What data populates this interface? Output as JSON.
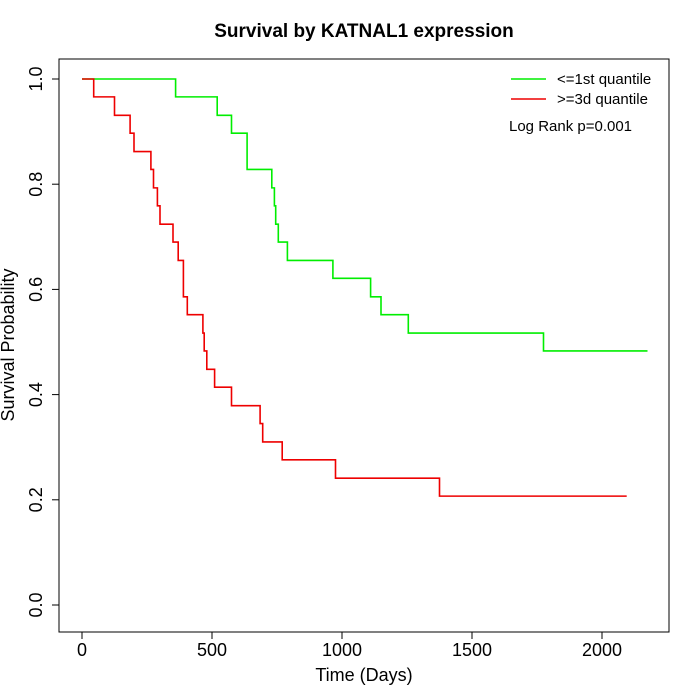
{
  "chart_data": {
    "type": "line",
    "title": "Survival by KATNAL1 expression",
    "xlabel": "Time (Days)",
    "ylabel": "Survival Probability",
    "xlim": [
      0,
      2200
    ],
    "ylim": [
      0,
      1
    ],
    "x_ticks": [
      "0",
      "500",
      "1000",
      "1500",
      "2000"
    ],
    "x_tick_values": [
      0,
      500,
      1000,
      1500,
      2000
    ],
    "y_ticks": [
      "0.0",
      "0.2",
      "0.4",
      "0.6",
      "0.8",
      "1.0"
    ],
    "y_tick_values": [
      0,
      0.2,
      0.4,
      0.6,
      0.8,
      1.0
    ],
    "grid": false,
    "legend_position": "top-right",
    "annotation": "Log Rank p=0.001",
    "series": [
      {
        "name": "<=1st quantile",
        "color": "#00ee00",
        "step": true,
        "x": [
          0,
          360,
          520,
          575,
          635,
          730,
          740,
          745,
          755,
          790,
          965,
          1110,
          1150,
          1255,
          1775,
          2175
        ],
        "y": [
          1.0,
          0.966,
          0.931,
          0.897,
          0.828,
          0.793,
          0.759,
          0.724,
          0.69,
          0.655,
          0.621,
          0.586,
          0.552,
          0.517,
          0.483,
          0.483
        ]
      },
      {
        "name": ">=3d quantile",
        "color": "#ee0000",
        "step": true,
        "x": [
          0,
          45,
          125,
          185,
          200,
          265,
          275,
          290,
          300,
          350,
          370,
          390,
          405,
          465,
          470,
          480,
          510,
          575,
          685,
          695,
          770,
          975,
          1375,
          2095
        ],
        "y": [
          1.0,
          0.966,
          0.931,
          0.897,
          0.862,
          0.828,
          0.793,
          0.759,
          0.724,
          0.69,
          0.655,
          0.586,
          0.552,
          0.517,
          0.483,
          0.448,
          0.414,
          0.379,
          0.345,
          0.31,
          0.276,
          0.241,
          0.207,
          0.207
        ]
      }
    ]
  }
}
